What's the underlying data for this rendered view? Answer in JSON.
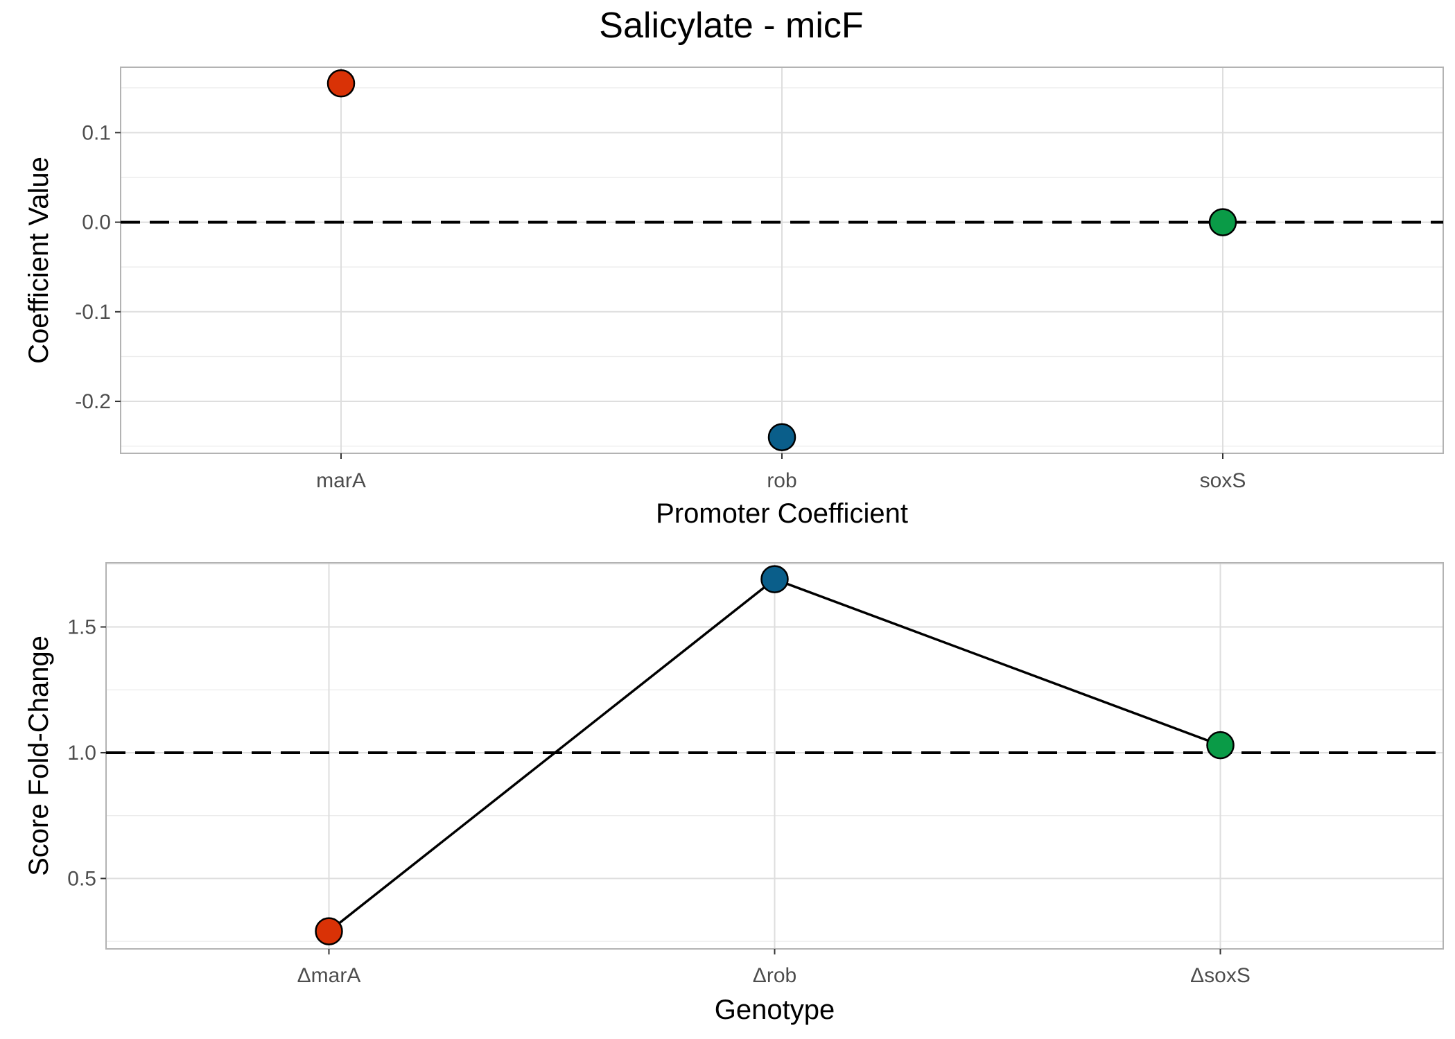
{
  "title": "Salicylate - micF",
  "chart_data": [
    {
      "type": "scatter",
      "xlabel": "Promoter Coefficient",
      "ylabel": "Coefficient Value",
      "categories": [
        "marA",
        "rob",
        "soxS"
      ],
      "values": [
        0.155,
        -0.24,
        0.0
      ],
      "colors": [
        "#d93206",
        "#0a5e8a",
        "#0a9b47"
      ],
      "ylim": [
        -0.258,
        0.173
      ],
      "yticks": [
        -0.2,
        -0.1,
        0.0,
        0.1
      ],
      "ytick_labels": [
        "-0.2",
        "-0.1",
        "0.0",
        "0.1"
      ],
      "reference_line": 0.0,
      "reference_style": "dashed",
      "grid": true,
      "legend": "none"
    },
    {
      "type": "line",
      "xlabel": "Genotype",
      "ylabel": "Score Fold-Change",
      "categories": [
        "ΔmarA",
        "Δrob",
        "ΔsoxS"
      ],
      "values": [
        0.29,
        1.69,
        1.03
      ],
      "colors": [
        "#d93206",
        "#0a5e8a",
        "#0a9b47"
      ],
      "ylim": [
        0.22,
        1.755
      ],
      "yticks": [
        0.5,
        1.0,
        1.5
      ],
      "ytick_labels": [
        "0.5",
        "1.0",
        "1.5"
      ],
      "reference_line": 1.0,
      "reference_style": "dashed",
      "grid": true,
      "legend": "none"
    }
  ]
}
